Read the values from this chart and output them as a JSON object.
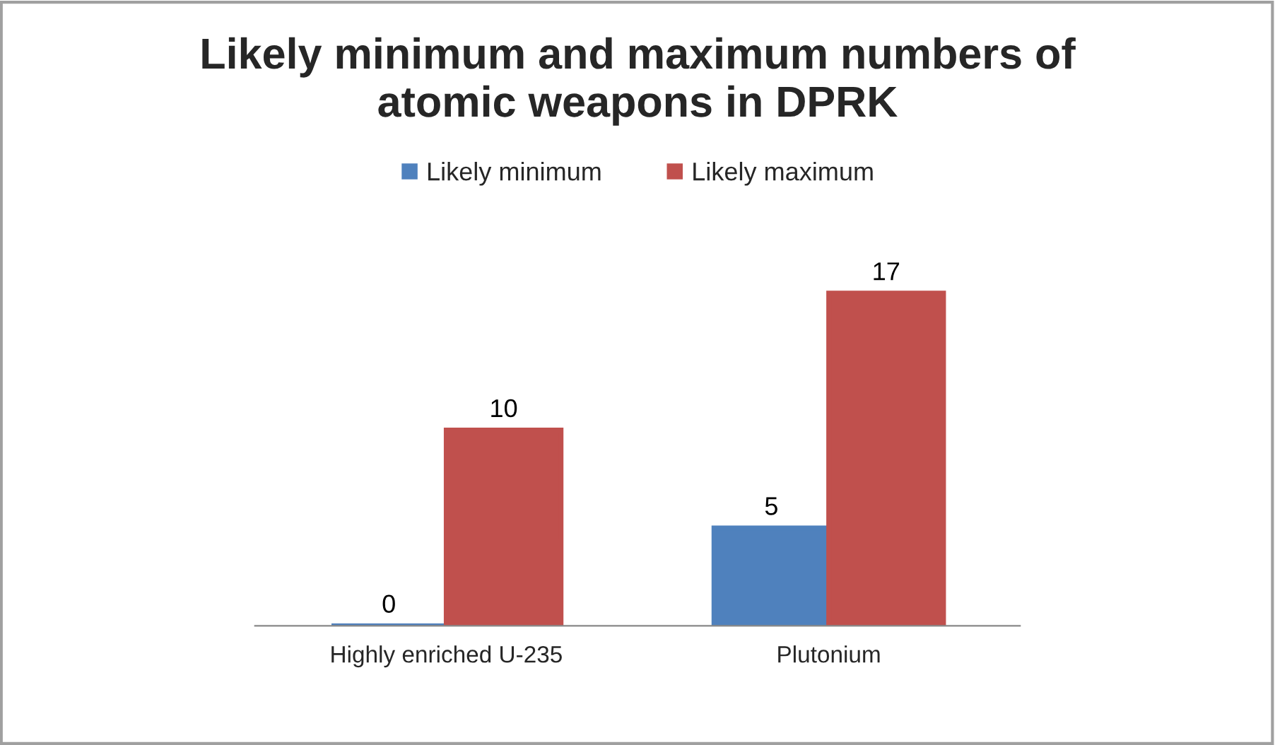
{
  "chart_data": {
    "type": "bar",
    "title": "Likely minimum and maximum numbers of\natomic weapons in DPRK",
    "categories": [
      "Highly enriched U-235",
      "Plutonium"
    ],
    "series": [
      {
        "name": "Likely minimum",
        "color": "#4f81bd",
        "values": [
          0,
          5
        ]
      },
      {
        "name": "Likely maximum",
        "color": "#c0504d",
        "values": [
          10,
          17
        ]
      }
    ],
    "data_labels": true,
    "legend": "top",
    "grid": false
  }
}
